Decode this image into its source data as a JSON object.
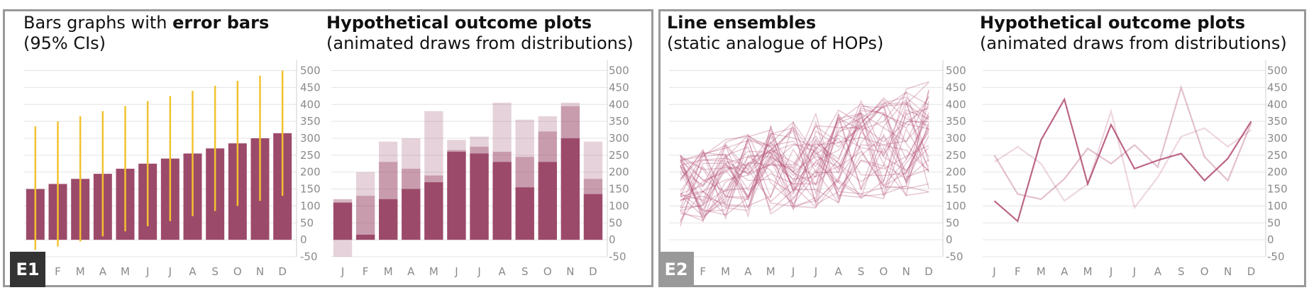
{
  "panels": {
    "e1": {
      "badge": "E1",
      "left_title_plain": "Bars graphs with ",
      "left_title_bold": "error bars",
      "left_subtitle": "(95% CIs)",
      "right_title": "Hypothetical outcome plots",
      "right_subtitle": "(animated draws from distributions)"
    },
    "e2": {
      "badge": "E2",
      "left_title": "Line ensembles",
      "left_subtitle": "(static analogue of HOPs)",
      "right_title": "Hypothetical outcome plots",
      "right_subtitle": "(animated draws from distributions)"
    }
  },
  "colors": {
    "bar": "#9c4a6a",
    "error_bar": "#f2c230",
    "line": "#b04a72",
    "grid": "#e3e3e3",
    "tick": "#8a8a8a",
    "e1_badge": "#333333",
    "e2_badge": "#999999"
  },
  "chart_data": [
    {
      "id": "e1-bars-error",
      "type": "bar",
      "categories": [
        "J",
        "F",
        "M",
        "A",
        "M",
        "J",
        "J",
        "A",
        "S",
        "O",
        "N",
        "D"
      ],
      "values": [
        150,
        165,
        180,
        195,
        210,
        225,
        240,
        255,
        270,
        285,
        300,
        315
      ],
      "error_low": [
        -30,
        -20,
        -5,
        10,
        25,
        40,
        55,
        70,
        85,
        100,
        115,
        130
      ],
      "error_high": [
        335,
        350,
        365,
        380,
        395,
        410,
        425,
        440,
        455,
        470,
        485,
        500
      ],
      "ylim": [
        -50,
        520
      ],
      "yticks": [
        -50,
        0,
        50,
        100,
        150,
        200,
        250,
        300,
        350,
        400,
        450,
        500
      ],
      "grid": true
    },
    {
      "id": "e1-hops",
      "type": "bar",
      "categories": [
        "J",
        "F",
        "M",
        "A",
        "M",
        "J",
        "J",
        "A",
        "S",
        "O",
        "N",
        "D"
      ],
      "draws": [
        [
          110,
          15,
          120,
          150,
          170,
          260,
          255,
          230,
          155,
          230,
          300,
          135
        ],
        [
          120,
          130,
          230,
          210,
          190,
          265,
          275,
          260,
          245,
          320,
          395,
          180
        ],
        [
          -50,
          200,
          290,
          300,
          380,
          295,
          305,
          405,
          355,
          365,
          405,
          290
        ]
      ],
      "ylim": [
        -50,
        520
      ],
      "yticks": [
        -50,
        0,
        50,
        100,
        150,
        200,
        250,
        300,
        350,
        400,
        450,
        500
      ],
      "grid": true
    },
    {
      "id": "e2-line-ensembles",
      "type": "line",
      "categories": [
        "J",
        "F",
        "M",
        "A",
        "M",
        "J",
        "J",
        "A",
        "S",
        "O",
        "N",
        "D"
      ],
      "yticks": [
        -50,
        0,
        50,
        100,
        150,
        200,
        250,
        300,
        350,
        400,
        450,
        500
      ],
      "ylim": [
        -50,
        520
      ],
      "grid": true,
      "series_count": 40
    },
    {
      "id": "e2-hops",
      "type": "line",
      "categories": [
        "J",
        "F",
        "M",
        "A",
        "M",
        "J",
        "J",
        "A",
        "S",
        "O",
        "N",
        "D"
      ],
      "series": [
        {
          "values": [
            115,
            55,
            295,
            415,
            165,
            340,
            210,
            235,
            255,
            175,
            240,
            350
          ],
          "opacity": 0.85
        },
        {
          "values": [
            250,
            135,
            120,
            180,
            270,
            225,
            280,
            215,
            450,
            245,
            175,
            345
          ],
          "opacity": 0.35
        },
        {
          "values": [
            230,
            275,
            225,
            115,
            165,
            380,
            95,
            185,
            305,
            330,
            275,
            325
          ],
          "opacity": 0.22
        }
      ],
      "ylim": [
        -50,
        520
      ],
      "yticks": [
        -50,
        0,
        50,
        100,
        150,
        200,
        250,
        300,
        350,
        400,
        450,
        500
      ],
      "grid": true
    }
  ]
}
